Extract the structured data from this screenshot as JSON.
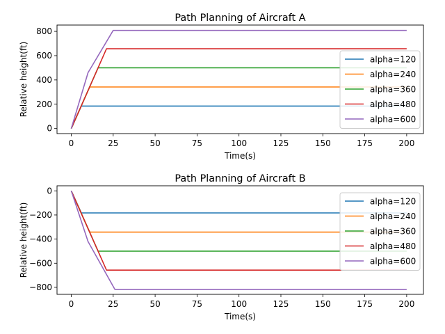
{
  "chart_data": [
    {
      "type": "line",
      "title": "Path Planning of Aircraft A",
      "xlabel": "Time(s)",
      "ylabel": "Relative height(ft)",
      "xlim": [
        -8.5,
        210
      ],
      "ylim": [
        -42,
        852
      ],
      "xticks": [
        0,
        25,
        50,
        75,
        100,
        125,
        150,
        175,
        200
      ],
      "yticks": [
        0,
        200,
        400,
        600,
        800
      ],
      "legend_position": "center-right",
      "grid": false,
      "series": [
        {
          "name": "alpha=120",
          "color": "#1f77b4",
          "x": [
            0,
            6,
            200
          ],
          "y": [
            0,
            185,
            185
          ]
        },
        {
          "name": "alpha=240",
          "color": "#ff7f0e",
          "x": [
            0,
            11,
            200
          ],
          "y": [
            0,
            342,
            342
          ]
        },
        {
          "name": "alpha=360",
          "color": "#2ca02c",
          "x": [
            0,
            16,
            200
          ],
          "y": [
            0,
            500,
            500
          ]
        },
        {
          "name": "alpha=480",
          "color": "#d62728",
          "x": [
            0,
            21,
            200
          ],
          "y": [
            0,
            657,
            657
          ]
        },
        {
          "name": "alpha=600",
          "color": "#9467bd",
          "x": [
            0,
            10,
            25,
            200
          ],
          "y": [
            0,
            460,
            808,
            808
          ]
        }
      ]
    },
    {
      "type": "line",
      "title": "Path Planning of Aircraft B",
      "xlabel": "Time(s)",
      "ylabel": "Relative height(ft)",
      "xlim": [
        -8.5,
        210
      ],
      "ylim": [
        -858,
        42
      ],
      "xticks": [
        0,
        25,
        50,
        75,
        100,
        125,
        150,
        175,
        200
      ],
      "yticks": [
        0,
        -200,
        -400,
        -600,
        -800
      ],
      "legend_position": "upper-right",
      "grid": false,
      "series": [
        {
          "name": "alpha=120",
          "color": "#1f77b4",
          "x": [
            0,
            6,
            200
          ],
          "y": [
            0,
            -183,
            -183
          ]
        },
        {
          "name": "alpha=240",
          "color": "#ff7f0e",
          "x": [
            0,
            11,
            200
          ],
          "y": [
            0,
            -342,
            -342
          ]
        },
        {
          "name": "alpha=360",
          "color": "#2ca02c",
          "x": [
            0,
            16,
            200
          ],
          "y": [
            0,
            -500,
            -500
          ]
        },
        {
          "name": "alpha=480",
          "color": "#d62728",
          "x": [
            0,
            21,
            200
          ],
          "y": [
            0,
            -657,
            -657
          ]
        },
        {
          "name": "alpha=600",
          "color": "#9467bd",
          "x": [
            0,
            10,
            26,
            200
          ],
          "y": [
            0,
            -420,
            -817,
            -817
          ]
        }
      ]
    }
  ]
}
